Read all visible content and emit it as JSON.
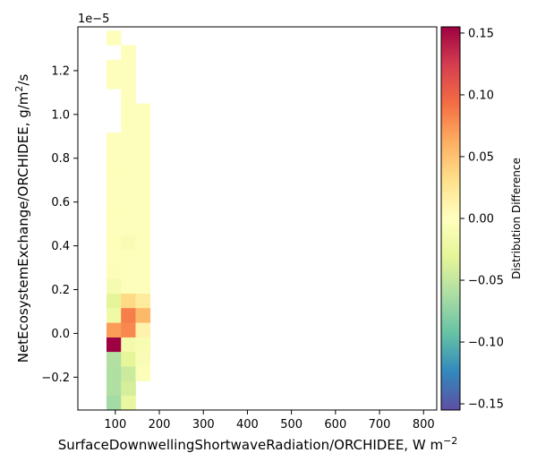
{
  "chart_data": {
    "type": "heatmap",
    "title": "",
    "xlabel": "SurfaceDownwellingShortwaveRadiation/ORCHIDEE,  W m",
    "xlabel_sup": "−2",
    "ylabel": "NetEcosystemExchange/ORCHIDEE,  g/m",
    "ylabel_sup": "2",
    "ylabel_suffix": "/s",
    "y_offset_label": "1e−5",
    "xlim": [
      15,
      830
    ],
    "ylim": [
      -0.35,
      1.4
    ],
    "xticks": [
      100,
      200,
      300,
      400,
      500,
      600,
      700,
      800
    ],
    "yticks": [
      -0.2,
      0.0,
      0.2,
      0.4,
      0.6,
      0.8,
      1.0,
      1.2
    ],
    "ytick_labels": [
      "−0.2",
      "0.0",
      "0.2",
      "0.4",
      "0.6",
      "0.8",
      "1.0",
      "1.2"
    ],
    "bin_edges_x": [
      80,
      113,
      146,
      179
    ],
    "bin_edges_y": [
      -0.35,
      -0.283,
      -0.217,
      -0.15,
      -0.083,
      -0.017,
      0.05,
      0.117,
      0.183,
      0.25,
      0.317,
      0.383,
      0.45,
      0.517,
      0.583,
      0.65,
      0.717,
      0.783,
      0.85,
      0.917,
      0.983,
      1.05,
      1.117,
      1.183,
      1.25,
      1.317,
      1.383
    ],
    "cells": [
      {
        "col": 0,
        "row": 0,
        "value": -0.065
      },
      {
        "col": 0,
        "row": 1,
        "value": -0.06
      },
      {
        "col": 0,
        "row": 2,
        "value": -0.06
      },
      {
        "col": 0,
        "row": 3,
        "value": -0.058
      },
      {
        "col": 0,
        "row": 4,
        "value": 0.155
      },
      {
        "col": 0,
        "row": 5,
        "value": 0.07
      },
      {
        "col": 0,
        "row": 6,
        "value": -0.02
      },
      {
        "col": 0,
        "row": 7,
        "value": -0.03
      },
      {
        "col": 0,
        "row": 8,
        "value": -0.012
      },
      {
        "col": 0,
        "row": 9,
        "value": -0.005
      },
      {
        "col": 0,
        "row": 10,
        "value": -0.003
      },
      {
        "col": 0,
        "row": 11,
        "value": -0.004
      },
      {
        "col": 0,
        "row": 12,
        "value": -0.003
      },
      {
        "col": 0,
        "row": 13,
        "value": -0.004
      },
      {
        "col": 0,
        "row": 14,
        "value": -0.003
      },
      {
        "col": 0,
        "row": 15,
        "value": -0.003
      },
      {
        "col": 0,
        "row": 16,
        "value": -0.004
      },
      {
        "col": 0,
        "row": 17,
        "value": -0.003
      },
      {
        "col": 0,
        "row": 18,
        "value": -0.002
      },
      {
        "col": 0,
        "row": 22,
        "value": -0.002
      },
      {
        "col": 0,
        "row": 23,
        "value": -0.003
      },
      {
        "col": 0,
        "row": 25,
        "value": -0.002
      },
      {
        "col": 1,
        "row": 0,
        "value": -0.025
      },
      {
        "col": 1,
        "row": 1,
        "value": -0.04
      },
      {
        "col": 1,
        "row": 2,
        "value": -0.045
      },
      {
        "col": 1,
        "row": 3,
        "value": -0.03
      },
      {
        "col": 1,
        "row": 4,
        "value": -0.015
      },
      {
        "col": 1,
        "row": 5,
        "value": 0.08
      },
      {
        "col": 1,
        "row": 6,
        "value": 0.085
      },
      {
        "col": 1,
        "row": 7,
        "value": 0.035
      },
      {
        "col": 1,
        "row": 8,
        "value": -0.003
      },
      {
        "col": 1,
        "row": 9,
        "value": -0.003
      },
      {
        "col": 1,
        "row": 10,
        "value": -0.004
      },
      {
        "col": 1,
        "row": 11,
        "value": -0.008
      },
      {
        "col": 1,
        "row": 12,
        "value": -0.003
      },
      {
        "col": 1,
        "row": 13,
        "value": -0.003
      },
      {
        "col": 1,
        "row": 14,
        "value": -0.003
      },
      {
        "col": 1,
        "row": 15,
        "value": -0.002
      },
      {
        "col": 1,
        "row": 16,
        "value": -0.003
      },
      {
        "col": 1,
        "row": 17,
        "value": -0.002
      },
      {
        "col": 1,
        "row": 18,
        "value": -0.002
      },
      {
        "col": 1,
        "row": 19,
        "value": -0.002
      },
      {
        "col": 1,
        "row": 20,
        "value": -0.002
      },
      {
        "col": 1,
        "row": 21,
        "value": -0.002
      },
      {
        "col": 1,
        "row": 22,
        "value": -0.002
      },
      {
        "col": 1,
        "row": 23,
        "value": -0.002
      },
      {
        "col": 1,
        "row": 24,
        "value": -0.002
      },
      {
        "col": 2,
        "row": 2,
        "value": -0.005
      },
      {
        "col": 2,
        "row": 3,
        "value": -0.008
      },
      {
        "col": 2,
        "row": 4,
        "value": -0.01
      },
      {
        "col": 2,
        "row": 5,
        "value": 0.012
      },
      {
        "col": 2,
        "row": 6,
        "value": 0.055
      },
      {
        "col": 2,
        "row": 7,
        "value": 0.02
      },
      {
        "col": 2,
        "row": 8,
        "value": -0.002
      },
      {
        "col": 2,
        "row": 9,
        "value": -0.002
      },
      {
        "col": 2,
        "row": 10,
        "value": -0.002
      },
      {
        "col": 2,
        "row": 11,
        "value": -0.002
      },
      {
        "col": 2,
        "row": 12,
        "value": -0.002
      },
      {
        "col": 2,
        "row": 13,
        "value": -0.002
      },
      {
        "col": 2,
        "row": 14,
        "value": -0.002
      },
      {
        "col": 2,
        "row": 15,
        "value": -0.002
      },
      {
        "col": 2,
        "row": 16,
        "value": -0.002
      },
      {
        "col": 2,
        "row": 17,
        "value": -0.002
      },
      {
        "col": 2,
        "row": 18,
        "value": -0.002
      },
      {
        "col": 2,
        "row": 19,
        "value": -0.002
      },
      {
        "col": 2,
        "row": 20,
        "value": -0.002
      }
    ],
    "colorbar": {
      "label": "Distribution Difference",
      "colormap": "Spectral_r",
      "range": [
        -0.155,
        0.155
      ],
      "ticks": [
        -0.15,
        -0.1,
        -0.05,
        0.0,
        0.05,
        0.1,
        0.15
      ],
      "tick_labels": [
        "−0.15",
        "−0.10",
        "−0.05",
        "0.00",
        "0.05",
        "0.10",
        "0.15"
      ]
    },
    "grid": false
  }
}
